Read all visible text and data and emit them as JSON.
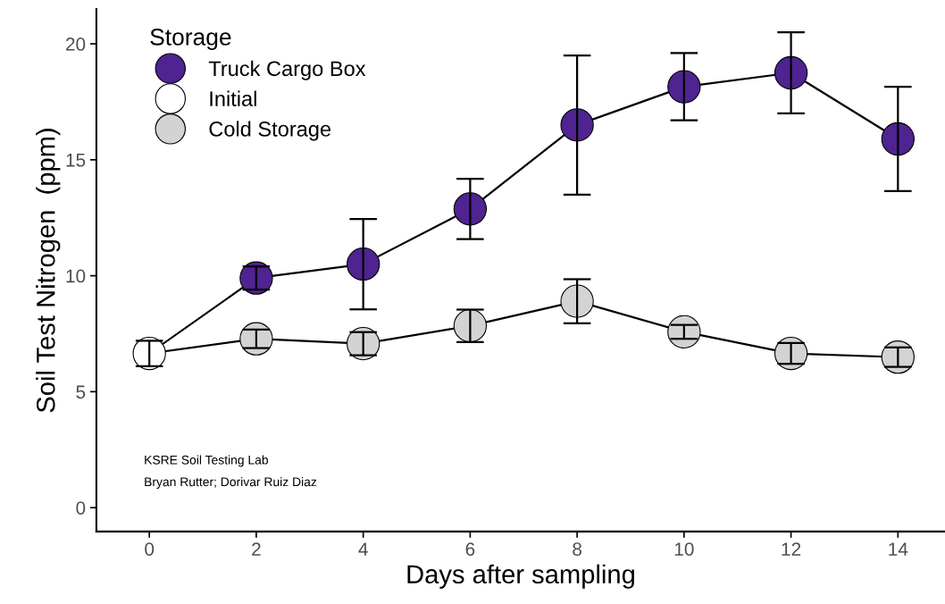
{
  "chart_data": {
    "type": "scatter",
    "xlabel": "Days after sampling",
    "ylabel": "Soil Test Nitrogen  (ppm)",
    "legend_title": "Storage",
    "legend": "top left",
    "grid": false,
    "xlim": [
      -0.99,
      14.88
    ],
    "ylim": [
      -1.03,
      21.5
    ],
    "xticks": [
      0,
      2,
      4,
      6,
      8,
      10,
      12,
      14
    ],
    "yticks": [
      0,
      5,
      10,
      15,
      20
    ],
    "series": [
      {
        "type": "line",
        "color": "#000000",
        "x": [
          0,
          2,
          4,
          6,
          8,
          10,
          12,
          14
        ],
        "values": [
          6.65,
          9.9,
          10.5,
          12.88,
          16.5,
          18.15,
          18.75,
          15.9
        ]
      },
      {
        "type": "line",
        "color": "#000000",
        "x": [
          0,
          2,
          4,
          6,
          8,
          10,
          12,
          14
        ],
        "values": [
          6.65,
          7.28,
          7.07,
          7.84,
          8.9,
          7.58,
          6.65,
          6.49
        ]
      },
      {
        "name": "Truck Cargo Box",
        "color": "#4f2390",
        "marker": "circle",
        "x": [
          2,
          4,
          6,
          8,
          10,
          12,
          14
        ],
        "values": [
          9.9,
          10.5,
          12.88,
          16.5,
          18.15,
          18.75,
          15.9
        ],
        "errors": [
          0.5,
          1.95,
          1.3,
          3.0,
          1.45,
          1.75,
          2.25
        ]
      },
      {
        "name": "Initial",
        "color": "#ffffff",
        "marker": "circle",
        "x": [
          0
        ],
        "values": [
          6.65
        ],
        "errors": [
          0.55
        ]
      },
      {
        "name": "Cold Storage",
        "color": "#d3d3d3",
        "marker": "circle",
        "x": [
          2,
          4,
          6,
          8,
          10,
          12,
          14
        ],
        "values": [
          7.28,
          7.07,
          7.84,
          8.9,
          7.58,
          6.65,
          6.49
        ],
        "errors": [
          0.4,
          0.5,
          0.7,
          0.95,
          0.3,
          0.45,
          0.42
        ]
      }
    ],
    "annotations": [
      "KSRE Soil Testing Lab",
      "Bryan Rutter; Dorivar Ruiz Diaz"
    ]
  }
}
